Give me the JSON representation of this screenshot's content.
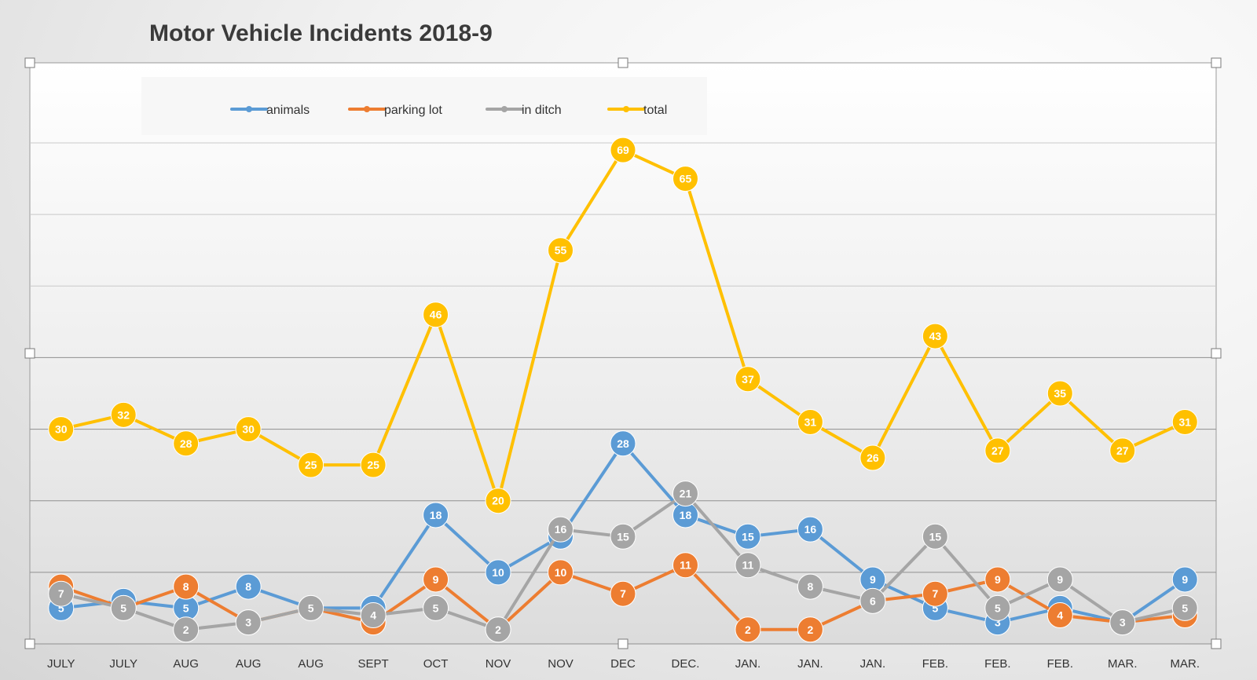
{
  "chart_data": {
    "type": "line",
    "title": "Motor Vehicle Incidents 2018-9",
    "xlabel": "",
    "ylabel": "",
    "ylim": [
      0,
      70
    ],
    "grid": true,
    "legend": "top",
    "categories": [
      "JULY",
      "JULY",
      "AUG",
      "AUG",
      "AUG",
      "SEPT",
      "OCT",
      "NOV",
      "NOV",
      "DEC",
      "DEC.",
      "JAN.",
      "JAN.",
      "JAN.",
      "FEB.",
      "FEB.",
      "FEB.",
      "MAR.",
      "MAR."
    ],
    "series": [
      {
        "name": "animals",
        "color": "#5b9bd5",
        "values": [
          5,
          6,
          5,
          8,
          5,
          5,
          18,
          10,
          15,
          28,
          18,
          15,
          16,
          9,
          5,
          3,
          5,
          3,
          9
        ]
      },
      {
        "name": "parking lot",
        "color": "#ed7d31",
        "values": [
          8,
          5,
          8,
          3,
          5,
          3,
          9,
          2,
          10,
          7,
          11,
          2,
          2,
          6,
          7,
          9,
          4,
          3,
          4
        ]
      },
      {
        "name": "in ditch",
        "color": "#a5a5a5",
        "values": [
          7,
          5,
          2,
          3,
          5,
          4,
          5,
          2,
          16,
          15,
          21,
          11,
          8,
          6,
          15,
          5,
          9,
          3,
          5
        ]
      },
      {
        "name": "total",
        "color": "#ffc000",
        "values": [
          30,
          32,
          28,
          30,
          25,
          25,
          46,
          20,
          55,
          69,
          65,
          37,
          31,
          26,
          43,
          27,
          35,
          27,
          31
        ]
      }
    ]
  }
}
